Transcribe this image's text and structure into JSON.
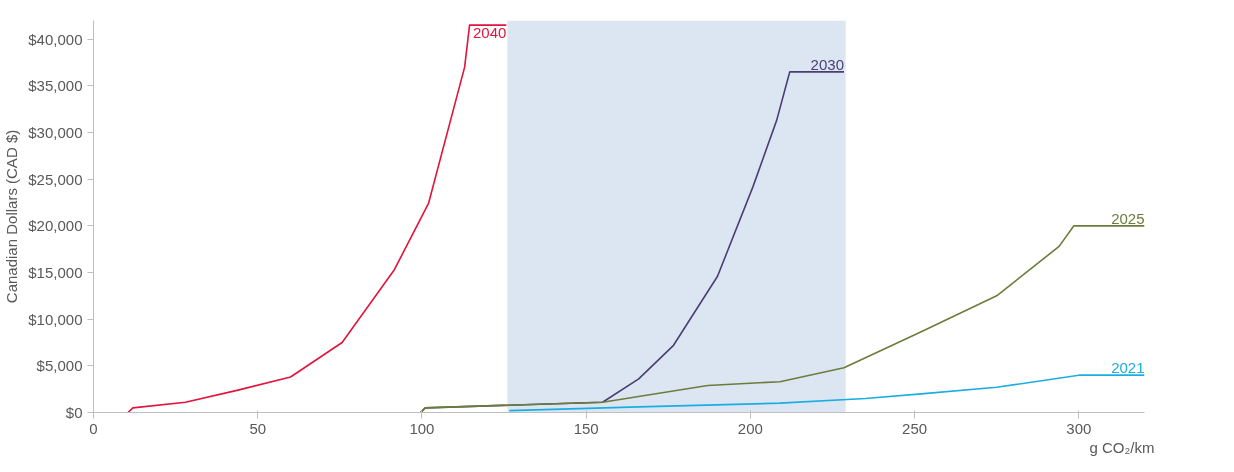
{
  "chart_data": {
    "type": "line",
    "xlabel": "g CO₂/km",
    "ylabel": "Canadian Dollars (CAD $)",
    "xlim": [
      0,
      320
    ],
    "ylim": [
      0,
      42000
    ],
    "xticks": [
      0,
      50,
      100,
      150,
      200,
      250,
      300
    ],
    "yticks": [
      {
        "value": 0,
        "label": "$0"
      },
      {
        "value": 5000,
        "label": "$5,000"
      },
      {
        "value": 10000,
        "label": "$10,000"
      },
      {
        "value": 15000,
        "label": "$15,000"
      },
      {
        "value": 20000,
        "label": "$20,000"
      },
      {
        "value": 25000,
        "label": "$25,000"
      },
      {
        "value": 30000,
        "label": "$30,000"
      },
      {
        "value": 35000,
        "label": "$35,000"
      },
      {
        "value": 40000,
        "label": "$40,000"
      }
    ],
    "grid": false,
    "marker": "none",
    "line_style": "solid",
    "bands": [
      {
        "axis": "x",
        "from": 126,
        "to": 229,
        "color": "#dce6f2"
      }
    ],
    "series": [
      {
        "name": "2040",
        "color": "#e0143c",
        "x": [
          10.5,
          12,
          28,
          44,
          60,
          75.7,
          91.6,
          102,
          113,
          114.5,
          125.7
        ],
        "values": [
          0,
          500,
          1100,
          2400,
          3800,
          7500,
          15300,
          22400,
          37000,
          41500,
          41500
        ]
      },
      {
        "name": "2030",
        "color": "#4a3f72",
        "x": [
          99.6,
          101,
          155,
          166,
          176.6,
          190,
          200.8,
          208,
          212,
          228.5
        ],
        "values": [
          0,
          500,
          1100,
          3600,
          7200,
          14600,
          24200,
          31300,
          36500,
          36500
        ]
      },
      {
        "name": "2025",
        "color": "#6b7d3a",
        "x": [
          99.6,
          101,
          155,
          187,
          209,
          228.5,
          251.7,
          275,
          294,
          298.5,
          320
        ],
        "values": [
          0,
          500,
          1100,
          2900,
          3300,
          4800,
          8600,
          12500,
          17800,
          20000,
          20000
        ]
      },
      {
        "name": "2021",
        "color": "#1aaee0",
        "x": [
          126.6,
          166,
          209,
          235,
          252,
          275,
          300,
          320
        ],
        "values": [
          200,
          600,
          1000,
          1500,
          2000,
          2700,
          4000,
          4000
        ]
      }
    ]
  }
}
